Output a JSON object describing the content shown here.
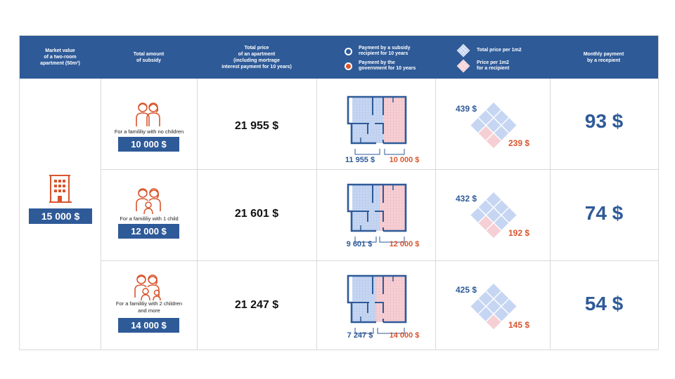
{
  "header": {
    "market_value": "Market value\nof a two-room\napartment (50m²)",
    "total_subsidy": "Total amount\nof subsidy",
    "total_price": "Total price\nof an apartment\n(including mortrage\ninterest payment for 10 years)",
    "legend_subsidy_recipient": "Payment by a subsidy\nrecipient for 10 years",
    "legend_government": "Payment by the\ngovernment for 10 years",
    "legend_total_per_m2": "Total price per 1m2",
    "legend_recipient_per_m2": "Price per 1m2\nfor a recipient",
    "monthly_payment": "Monthly payment\nby a recepient"
  },
  "market_value": "15 000 $",
  "colors": {
    "blue": "#2e5a98",
    "red": "#d9552d",
    "light_blue": "#c6d6f2",
    "light_red": "#f6cfd4"
  },
  "rows": [
    {
      "family_label": "For a famililiy with no children",
      "subsidy": "10 000 $",
      "total_price": "21 955 $",
      "recipient_payment": "11 955 $",
      "government_payment": "10 000 $",
      "total_per_m2": "439 $",
      "recipient_per_m2": "239 $",
      "monthly": "93 $"
    },
    {
      "family_label": "For a famililiy with 1 child",
      "subsidy": "12 000 $",
      "total_price": "21 601 $",
      "recipient_payment": "9 601 $",
      "government_payment": "12 000 $",
      "total_per_m2": "432 $",
      "recipient_per_m2": "192 $",
      "monthly": "74 $"
    },
    {
      "family_label": "For a famililiy with 2 children\nand more",
      "subsidy": "14 000 $",
      "total_price": "21 247 $",
      "recipient_payment": "7 247 $",
      "government_payment": "14 000 $",
      "total_per_m2": "425 $",
      "recipient_per_m2": "145 $",
      "monthly": "54 $"
    }
  ]
}
